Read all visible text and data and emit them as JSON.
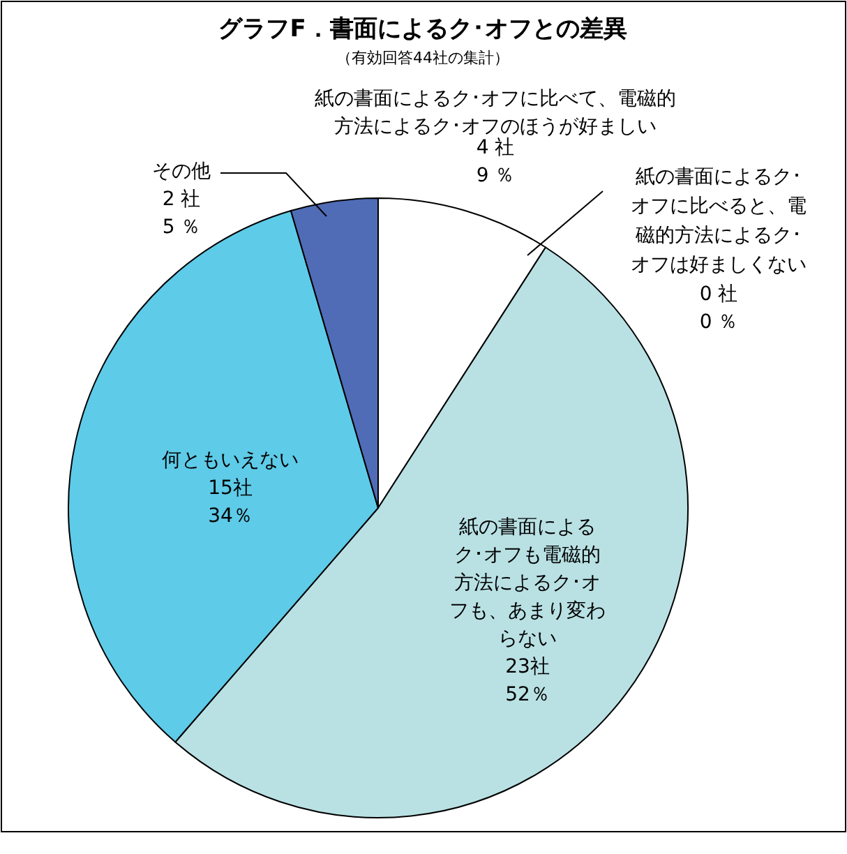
{
  "chart_data": {
    "type": "pie",
    "title": "グラフF．書面によるク･オフとの差異",
    "subtitle": "（有効回答44社の集計）",
    "categories": [
      "紙の書面によるク･オフに比べて、電磁的方法によるク･オフのほうが好ましい",
      "紙の書面によるク･オフに比べると、電磁的方法によるク･オフは好ましくない",
      "紙の書面によるク･オフも電磁的方法によるク･オフも、あまり変わらない",
      "何ともいえない",
      "その他"
    ],
    "values": [
      4,
      0,
      23,
      15,
      2
    ],
    "value_labels": [
      "4 社\n9 ％",
      "0 社\n0 ％",
      "23社\n52％",
      "15社\n34％",
      "2 社\n5 ％"
    ],
    "colors": [
      "#ffffff",
      null,
      "#b9e1e4",
      "#5ecbe8",
      "#506cb6"
    ]
  }
}
